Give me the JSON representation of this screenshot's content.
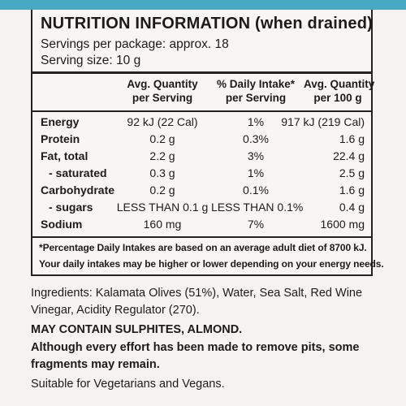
{
  "panel": {
    "title": "NUTRITION INFORMATION (when drained)",
    "servings_per_package": "Servings per package: approx. 18",
    "serving_size": "Serving size: 10 g"
  },
  "table": {
    "headers": [
      [
        "Avg. Quantity",
        "per Serving"
      ],
      [
        "% Daily Intake*",
        "per Serving"
      ],
      [
        "Avg. Quantity",
        "per 100 g"
      ]
    ],
    "rows": [
      {
        "label": "Energy",
        "serving": "92 kJ (22 Cal)",
        "daily": "1%",
        "per100": "917 kJ (219 Cal)"
      },
      {
        "label": "Protein",
        "serving": "0.2 g",
        "daily": "0.3%",
        "per100": "1.6 g"
      },
      {
        "label": "Fat, total",
        "serving": "2.2 g",
        "daily": "3%",
        "per100": "22.4 g"
      },
      {
        "label": "- saturated",
        "serving": "0.3 g",
        "daily": "1%",
        "per100": "2.5 g"
      },
      {
        "label": "Carbohydrate",
        "serving": "0.2 g",
        "daily": "0.1%",
        "per100": "1.6 g"
      },
      {
        "label": "- sugars",
        "serving": "LESS THAN 0.1 g",
        "daily": "LESS THAN 0.1%",
        "per100": "0.4 g"
      },
      {
        "label": "Sodium",
        "serving": "160 mg",
        "daily": "7%",
        "per100": "1600 mg"
      }
    ]
  },
  "footnote": {
    "line1": "*Percentage Daily Intakes are based on an average adult diet of 8700 kJ.",
    "line2": "Your daily intakes may be higher or lower depending on your energy needs."
  },
  "label_text": {
    "ingredients_line1": "Ingredients: Kalamata Olives (51%), Water, Sea Salt, Red Wine",
    "ingredients_line2": "Vinegar, Acidity Regulator (270).",
    "allergens": "MAY CONTAIN SULPHITES, ALMOND.",
    "pits_line1": "Although every effort has been made to remove pits, some",
    "pits_line2": "fragments may remain.",
    "suitability": "Suitable for Vegetarians and Vegans."
  },
  "colors": {
    "accent_strip": "#47a9c3",
    "ink": "#1b1b1b",
    "paper": "#f4f3ef"
  }
}
